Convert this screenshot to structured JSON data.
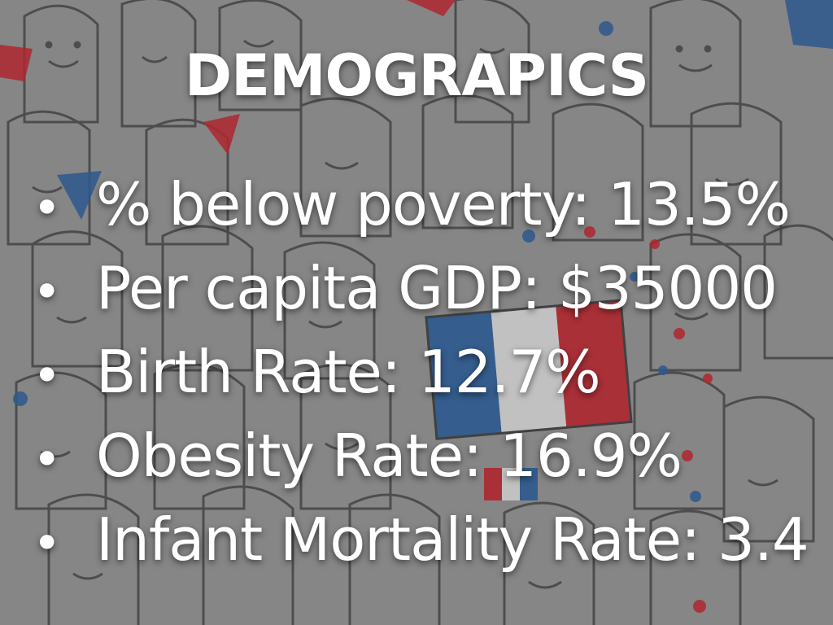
{
  "slide": {
    "title": "DEMOGRAPICS",
    "bullet_glyph": "•",
    "bullets": [
      "% below poverty: 13.5%",
      "Per capita GDP: $35000",
      "Birth Rate: 12.7%",
      "Obesity Rate: 16.9%",
      "Infant Mortality Rate: 3.4"
    ]
  },
  "colors": {
    "text": "#ffffff",
    "flag_blue": "#2a5fa0",
    "flag_red": "#c8232c",
    "background": "#8f8f8f"
  }
}
